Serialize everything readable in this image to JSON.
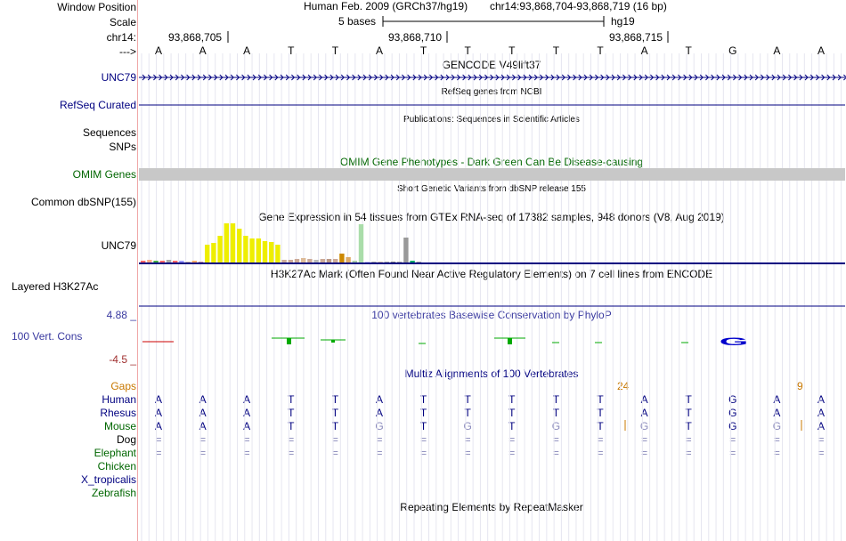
{
  "labels": {
    "window_position": "Window Position",
    "scale": "Scale",
    "chrom": "chr14:",
    "strand": "--->",
    "unc79_gene": "UNC79",
    "refseq": "RefSeq Curated",
    "sequences": "Sequences",
    "snps": "SNPs",
    "omim": "OMIM Genes",
    "dbsnp": "Common dbSNP(155)",
    "unc79_gtex": "UNC79",
    "h3k27ac": "Layered H3K27Ac",
    "cons_max": "4.88 _",
    "cons_label": "100 Vert. Cons",
    "cons_min": "-4.5 _",
    "gaps": "Gaps"
  },
  "header": {
    "assembly": "Human Feb. 2009 (GRCh37/hg19)",
    "position": "chr14:93,868,704-93,868,719 (16 bp)",
    "scale_text": "5 bases",
    "scale_db": "hg19",
    "ticks": [
      "93,868,705",
      "93,868,710",
      "93,868,715"
    ]
  },
  "bases": [
    "A",
    "A",
    "A",
    "T",
    "T",
    "A",
    "T",
    "T",
    "T",
    "T",
    "T",
    "A",
    "T",
    "G",
    "A",
    "A"
  ],
  "track_titles": {
    "gencode": "GENCODE V49lift37",
    "refseq": "RefSeq genes from NCBI",
    "publications": "Publications: Sequences in Scientific Articles",
    "omim": "OMIM Gene Phenotypes - Dark Green Can Be Disease-causing",
    "dbsnp": "Short Genetic Variants from dbSNP release 155",
    "gtex": "Gene Expression in 54 tissues from GTEx RNA-seq of 17382 samples, 948 donors (V8, Aug 2019)",
    "h3k27ac": "H3K27Ac Mark (Often Found Near Active Regulatory Elements) on 7 cell lines from ENCODE",
    "phylop": "100 vertebrates Basewise Conservation by PhyloP",
    "multiz": "Multiz Alignments of 100 Vertebrates",
    "repeatmasker": "Repeating Elements by RepeatMasker"
  },
  "gap_counts": [
    "24",
    "9"
  ],
  "species": [
    {
      "name": "Human",
      "seq": [
        "A",
        "A",
        "A",
        "T",
        "T",
        "A",
        "T",
        "T",
        "T",
        "T",
        "T",
        "A",
        "T",
        "G",
        "A",
        "A"
      ]
    },
    {
      "name": "Rhesus",
      "seq": [
        "A",
        "A",
        "A",
        "T",
        "T",
        "A",
        "T",
        "T",
        "T",
        "T",
        "T",
        "A",
        "T",
        "G",
        "A",
        "A"
      ]
    },
    {
      "name": "Mouse",
      "seq": [
        "A",
        "A",
        "A",
        "T",
        "T",
        "G",
        "T",
        "G",
        "T",
        "G",
        "T",
        "G",
        "T",
        "G",
        "G",
        "A"
      ]
    },
    {
      "name": "Dog",
      "seq": [
        "=",
        "=",
        "=",
        "=",
        "=",
        "=",
        "=",
        "=",
        "=",
        "=",
        "=",
        "=",
        "=",
        "=",
        "=",
        "="
      ]
    },
    {
      "name": "Elephant",
      "seq": [
        "=",
        "=",
        "=",
        "=",
        "=",
        "=",
        "=",
        "=",
        "=",
        "=",
        "=",
        "=",
        "=",
        "=",
        "=",
        "="
      ]
    },
    {
      "name": "Chicken",
      "seq": []
    },
    {
      "name": "X_tropicalis",
      "seq": []
    },
    {
      "name": "Zebrafish",
      "seq": []
    }
  ],
  "mouse_diff_positions": [
    5,
    7,
    9,
    11,
    14
  ],
  "gtex_tissue_values": [
    2,
    3,
    2,
    2,
    3,
    2,
    2,
    1,
    2,
    1,
    20,
    22,
    30,
    44,
    44,
    38,
    30,
    27,
    27,
    24,
    23,
    20,
    3,
    3,
    4,
    5,
    4,
    3,
    4,
    4,
    4,
    10,
    6,
    2,
    43,
    1,
    1,
    1,
    1,
    1,
    1,
    28,
    2,
    1
  ],
  "gtex_tissue_colors": [
    "#ff6666",
    "#ffaa88",
    "#44aa44",
    "#ff6666",
    "#aaaaaa",
    "#ff6666",
    "#9999ff",
    "#ccbbaa",
    "#ffaa66",
    "#cc9999",
    "#eeee00",
    "#eeee00",
    "#eeee00",
    "#eeee00",
    "#eeee00",
    "#eeee00",
    "#eeee00",
    "#eeee00",
    "#eeee00",
    "#eeee00",
    "#eeee00",
    "#eeee00",
    "#ccaa99",
    "#ccaa99",
    "#ccaa99",
    "#ddbb99",
    "#ccaa99",
    "#bbbbbb",
    "#ccaa99",
    "#bb9988",
    "#ccaa99",
    "#cc8800",
    "#ddaa66",
    "#aaccaa",
    "#aaddaa",
    "#ccccff",
    "#aaaaaa",
    "#ccbbaa",
    "#aaaaaa",
    "#888888",
    "#aaaaaa",
    "#999999",
    "#00aa66",
    "#aaaaaa"
  ],
  "colors": {
    "navy": "#000080",
    "green": "#006600",
    "orange": "#c87800",
    "omim_bar": "#c8c8c8",
    "conservation": "#0000cc",
    "gtex_yellow": "#eeee00"
  }
}
